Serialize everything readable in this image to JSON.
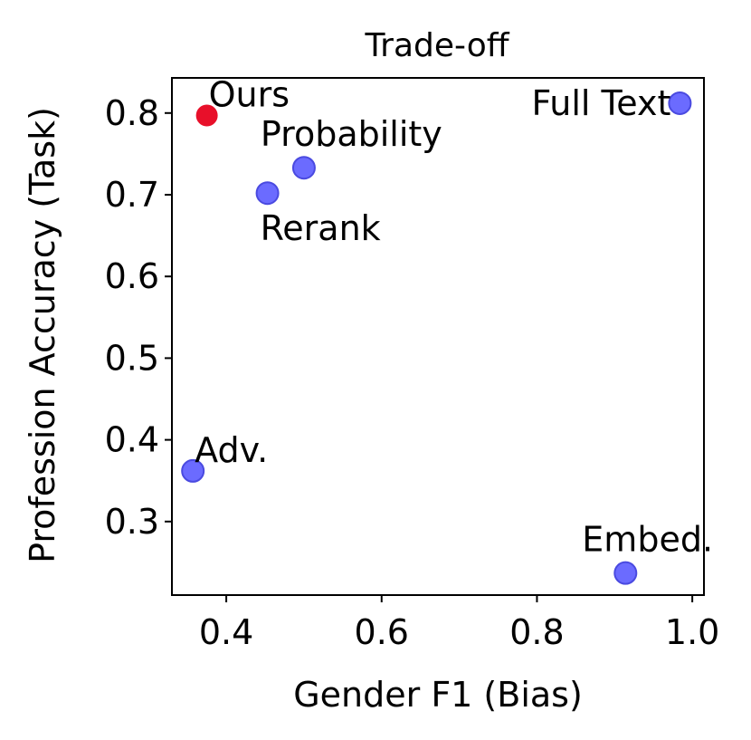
{
  "chart_data": {
    "type": "scatter",
    "title": "Trade-off",
    "xlabel": "Gender F1 (Bias)",
    "ylabel": "Profession Accuracy (Task)",
    "xlim": [
      0.33,
      1.015
    ],
    "ylim": [
      0.21,
      0.843
    ],
    "xticks": [
      0.4,
      0.6,
      0.8,
      1.0
    ],
    "xtick_labels": [
      "0.4",
      "0.6",
      "0.8",
      "1.0"
    ],
    "yticks": [
      0.3,
      0.4,
      0.5,
      0.6,
      0.7,
      0.8
    ],
    "ytick_labels": [
      "0.3",
      "0.4",
      "0.5",
      "0.6",
      "0.7",
      "0.8"
    ],
    "grid": false,
    "legend": false,
    "points": [
      {
        "label": "Ours",
        "x": 0.375,
        "y": 0.797,
        "color": "#e8102a",
        "label_pos": "above-right"
      },
      {
        "label": "Probability",
        "x": 0.5,
        "y": 0.733,
        "color": "#6b6bff",
        "label_pos": "above-left"
      },
      {
        "label": "Rerank",
        "x": 0.453,
        "y": 0.702,
        "color": "#6b6bff",
        "label_pos": "below-right"
      },
      {
        "label": "Full Text",
        "x": 0.984,
        "y": 0.812,
        "color": "#6b6bff",
        "label_pos": "left"
      },
      {
        "label": "Adv.",
        "x": 0.357,
        "y": 0.362,
        "color": "#6b6bff",
        "label_pos": "above-right"
      },
      {
        "label": "Embed.",
        "x": 0.914,
        "y": 0.237,
        "color": "#6b6bff",
        "label_pos": "above-left"
      }
    ]
  }
}
